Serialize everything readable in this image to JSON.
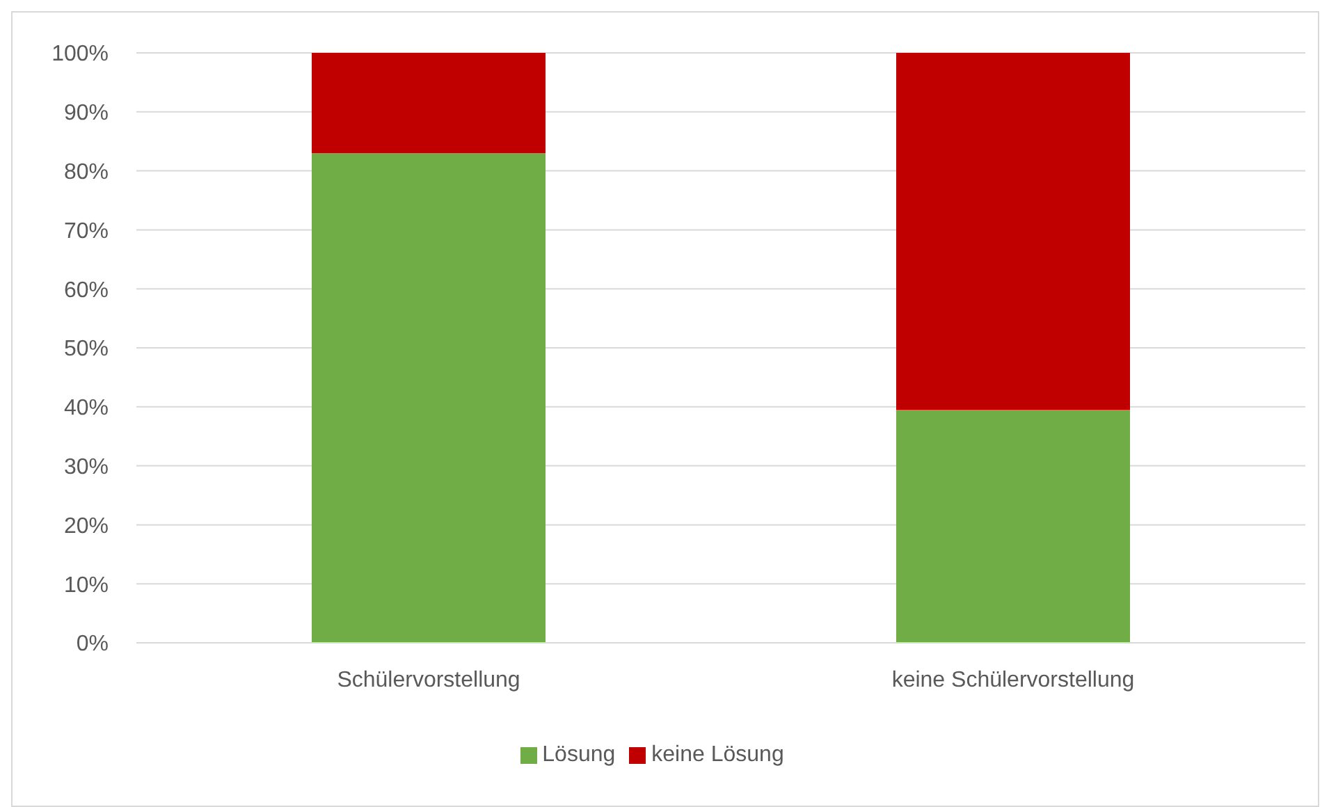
{
  "chart_data": {
    "type": "bar",
    "stacked": true,
    "categories": [
      "Schülervorstellung",
      "keine Schülervorstellung"
    ],
    "series": [
      {
        "name": "Lösung",
        "color": "#70ad47",
        "values": [
          83,
          39.5
        ]
      },
      {
        "name": "keine Lösung",
        "color": "#c00000",
        "values": [
          17,
          60.5
        ]
      }
    ],
    "ylim": [
      0,
      100
    ],
    "yticks": [
      {
        "value": 0,
        "label": "0%"
      },
      {
        "value": 10,
        "label": "10%"
      },
      {
        "value": 20,
        "label": "20%"
      },
      {
        "value": 30,
        "label": "30%"
      },
      {
        "value": 40,
        "label": "40%"
      },
      {
        "value": 50,
        "label": "50%"
      },
      {
        "value": 60,
        "label": "60%"
      },
      {
        "value": 70,
        "label": "70%"
      },
      {
        "value": 80,
        "label": "80%"
      },
      {
        "value": 90,
        "label": "90%"
      },
      {
        "value": 100,
        "label": "100%"
      }
    ],
    "grid": "y",
    "legend": "bottom"
  }
}
